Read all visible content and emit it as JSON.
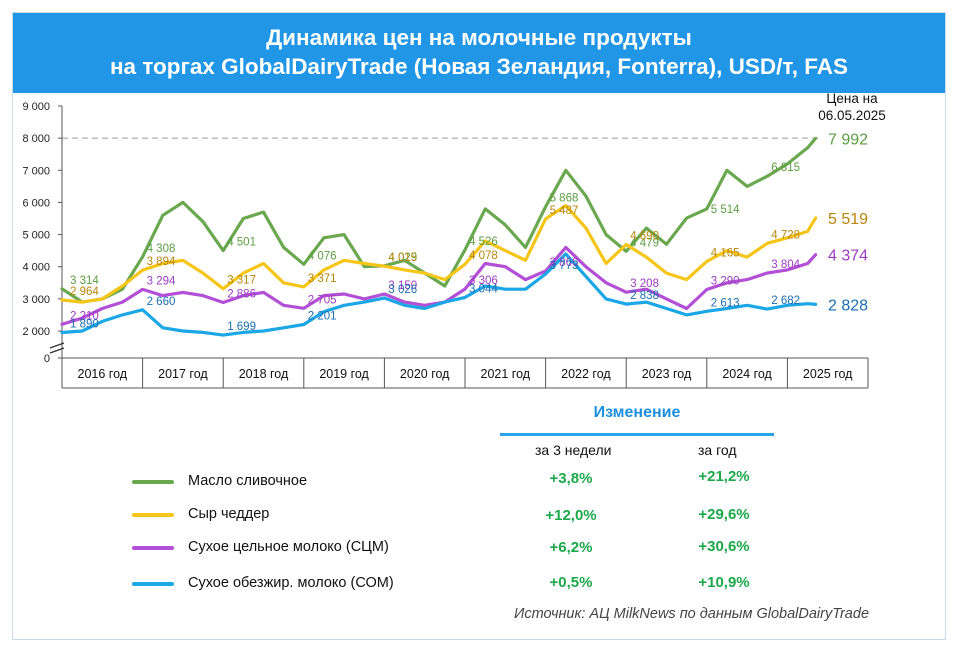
{
  "title": {
    "line1": "Динамика цен на молочные продукты",
    "line2": "на торгах GlobalDairyTrade (Новая Зеландия, Fonterra), USD/т, FAS"
  },
  "price_date_note": {
    "line1": "Цена на",
    "line2": "06.05.2025"
  },
  "changes": {
    "title": "Изменение",
    "col_3w": "за 3 недели",
    "col_year": "за год",
    "rows": [
      {
        "product": "Масло сливочное",
        "color": "#6aa84f",
        "change_3w": "+3,8%",
        "change_year": "+21,2%"
      },
      {
        "product": "Сыр чеддер",
        "color": "#f5c518",
        "change_3w": "+12,0%",
        "change_year": "+29,6%"
      },
      {
        "product": "Сухое цельное молоко (СЦМ)",
        "color": "#b34fd6",
        "change_3w": "+6,2%",
        "change_year": "+30,6%"
      },
      {
        "product": "Сухое обезжир. молоко (СОМ)",
        "color": "#1ba6e6",
        "change_3w": "+0,5%",
        "change_year": "+10,9%"
      }
    ]
  },
  "source": "Источник: АЦ MilkNews по данным GlobalDairyTrade",
  "chart_data": {
    "type": "line",
    "x": [
      2016.0,
      2016.25,
      2016.5,
      2016.75,
      2017.0,
      2017.25,
      2017.5,
      2017.75,
      2018.0,
      2018.25,
      2018.5,
      2018.75,
      2019.0,
      2019.25,
      2019.5,
      2019.75,
      2020.0,
      2020.25,
      2020.5,
      2020.75,
      2021.0,
      2021.25,
      2021.5,
      2021.75,
      2022.0,
      2022.25,
      2022.5,
      2022.75,
      2023.0,
      2023.25,
      2023.5,
      2023.75,
      2024.0,
      2024.25,
      2024.5,
      2024.75,
      2025.0,
      2025.25,
      2025.35
    ],
    "categories": [
      "2016 год",
      "2017 год",
      "2018 год",
      "2019 год",
      "2020 год",
      "2021 год",
      "2022 год",
      "2023 год",
      "2024 год",
      "2025 год"
    ],
    "ylim": [
      0,
      9000
    ],
    "yticks": [
      "0",
      "2 000",
      "3 000",
      "4 000",
      "5 000",
      "6 000",
      "7 000",
      "8 000",
      "9 000"
    ],
    "reference_line": 8000,
    "series": [
      {
        "name": "Масло сливочное",
        "color": "#6aa84f",
        "values": [
          3314,
          2900,
          3000,
          3300,
          4308,
          5600,
          6000,
          5400,
          4501,
          5500,
          5700,
          4600,
          4076,
          4900,
          5000,
          4000,
          4029,
          4200,
          3800,
          3400,
          4526,
          5800,
          5300,
          4600,
          5868,
          7000,
          6200,
          5000,
          4479,
          5200,
          4700,
          5514,
          5800,
          7000,
          6500,
          6815,
          7200,
          7700,
          7992
        ],
        "point_labels": [
          {
            "x": 2016.05,
            "value": 3314,
            "text": "3 314"
          },
          {
            "x": 2017.0,
            "value": 4308,
            "text": "4 308"
          },
          {
            "x": 2018.0,
            "value": 4501,
            "text": "4 501"
          },
          {
            "x": 2019.0,
            "value": 4076,
            "text": "4 076"
          },
          {
            "x": 2020.0,
            "value": 4029,
            "text": "4 029"
          },
          {
            "x": 2021.0,
            "value": 4526,
            "text": "4 526"
          },
          {
            "x": 2022.0,
            "value": 5868,
            "text": "5 868"
          },
          {
            "x": 2023.0,
            "value": 4479,
            "text": "4 479"
          },
          {
            "x": 2024.0,
            "value": 5514,
            "text": "5 514"
          },
          {
            "x": 2024.75,
            "value": 6815,
            "text": "6 815"
          }
        ],
        "end_label": "7 992"
      },
      {
        "name": "Сыр чеддер",
        "color": "#f5c518",
        "values": [
          2964,
          2900,
          3000,
          3400,
          3894,
          4100,
          4200,
          3800,
          3317,
          3800,
          4100,
          3500,
          3371,
          3900,
          4200,
          4100,
          4015,
          3900,
          3800,
          3600,
          4078,
          4800,
          4500,
          4200,
          5487,
          5900,
          5200,
          4100,
          4690,
          4300,
          3800,
          3600,
          4165,
          4500,
          4300,
          4728,
          4900,
          5100,
          5519
        ],
        "point_labels": [
          {
            "x": 2016.05,
            "value": 2964,
            "text": "2 964"
          },
          {
            "x": 2017.0,
            "value": 3894,
            "text": "3 894"
          },
          {
            "x": 2018.0,
            "value": 3317,
            "text": "3 317"
          },
          {
            "x": 2019.0,
            "value": 3371,
            "text": "3 371"
          },
          {
            "x": 2020.0,
            "value": 4015,
            "text": "4 015"
          },
          {
            "x": 2021.0,
            "value": 4078,
            "text": "4 078"
          },
          {
            "x": 2022.0,
            "value": 5487,
            "text": "5 487"
          },
          {
            "x": 2023.0,
            "value": 4690,
            "text": "4 690"
          },
          {
            "x": 2024.0,
            "value": 4165,
            "text": "4 165"
          },
          {
            "x": 2024.75,
            "value": 4728,
            "text": "4 728"
          }
        ],
        "end_label": "5 519"
      },
      {
        "name": "Сухое цельное молоко (СЦМ)",
        "color": "#b34fd6",
        "values": [
          2210,
          2400,
          2700,
          2900,
          3294,
          3100,
          3200,
          3100,
          2886,
          3100,
          3200,
          2800,
          2705,
          3100,
          3150,
          3000,
          3150,
          2900,
          2800,
          2900,
          3306,
          4100,
          4000,
          3600,
          3866,
          4600,
          4000,
          3500,
          3208,
          3300,
          3000,
          2700,
          3290,
          3500,
          3600,
          3804,
          3900,
          4100,
          4374
        ],
        "point_labels": [
          {
            "x": 2016.05,
            "value": 2210,
            "text": "2 210"
          },
          {
            "x": 2017.0,
            "value": 3294,
            "text": "3 294"
          },
          {
            "x": 2018.0,
            "value": 2886,
            "text": "2 886"
          },
          {
            "x": 2019.0,
            "value": 2705,
            "text": "2 705"
          },
          {
            "x": 2020.0,
            "value": 3150,
            "text": "3 150"
          },
          {
            "x": 2021.0,
            "value": 3306,
            "text": "3 306"
          },
          {
            "x": 2022.0,
            "value": 3866,
            "text": "3 866"
          },
          {
            "x": 2023.0,
            "value": 3208,
            "text": "3 208"
          },
          {
            "x": 2024.0,
            "value": 3290,
            "text": "3 290"
          },
          {
            "x": 2024.75,
            "value": 3804,
            "text": "3 804"
          }
        ],
        "end_label": "4 374"
      },
      {
        "name": "Сухое обезжир. молоко (СОМ)",
        "color": "#1ba6e6",
        "values": [
          1890,
          2000,
          2300,
          2500,
          2660,
          2100,
          2000,
          1900,
          1699,
          1900,
          2000,
          2100,
          2201,
          2600,
          2800,
          2900,
          3026,
          2800,
          2700,
          2900,
          3044,
          3400,
          3300,
          3300,
          3773,
          4400,
          3700,
          3000,
          2838,
          2900,
          2700,
          2500,
          2613,
          2700,
          2800,
          2682,
          2800,
          2850,
          2828
        ],
        "point_labels": [
          {
            "x": 2016.05,
            "value": 1890,
            "text": "1 890"
          },
          {
            "x": 2017.0,
            "value": 2660,
            "text": "2 660"
          },
          {
            "x": 2018.0,
            "value": 1699,
            "text": "1 699"
          },
          {
            "x": 2019.0,
            "value": 2201,
            "text": "2 201"
          },
          {
            "x": 2020.0,
            "value": 3026,
            "text": "3 026"
          },
          {
            "x": 2021.0,
            "value": 3044,
            "text": "3 044"
          },
          {
            "x": 2022.0,
            "value": 3773,
            "text": "3 773"
          },
          {
            "x": 2023.0,
            "value": 2838,
            "text": "2 838"
          },
          {
            "x": 2024.0,
            "value": 2613,
            "text": "2 613"
          },
          {
            "x": 2024.75,
            "value": 2682,
            "text": "2 682"
          }
        ],
        "end_label": "2 828"
      }
    ]
  }
}
